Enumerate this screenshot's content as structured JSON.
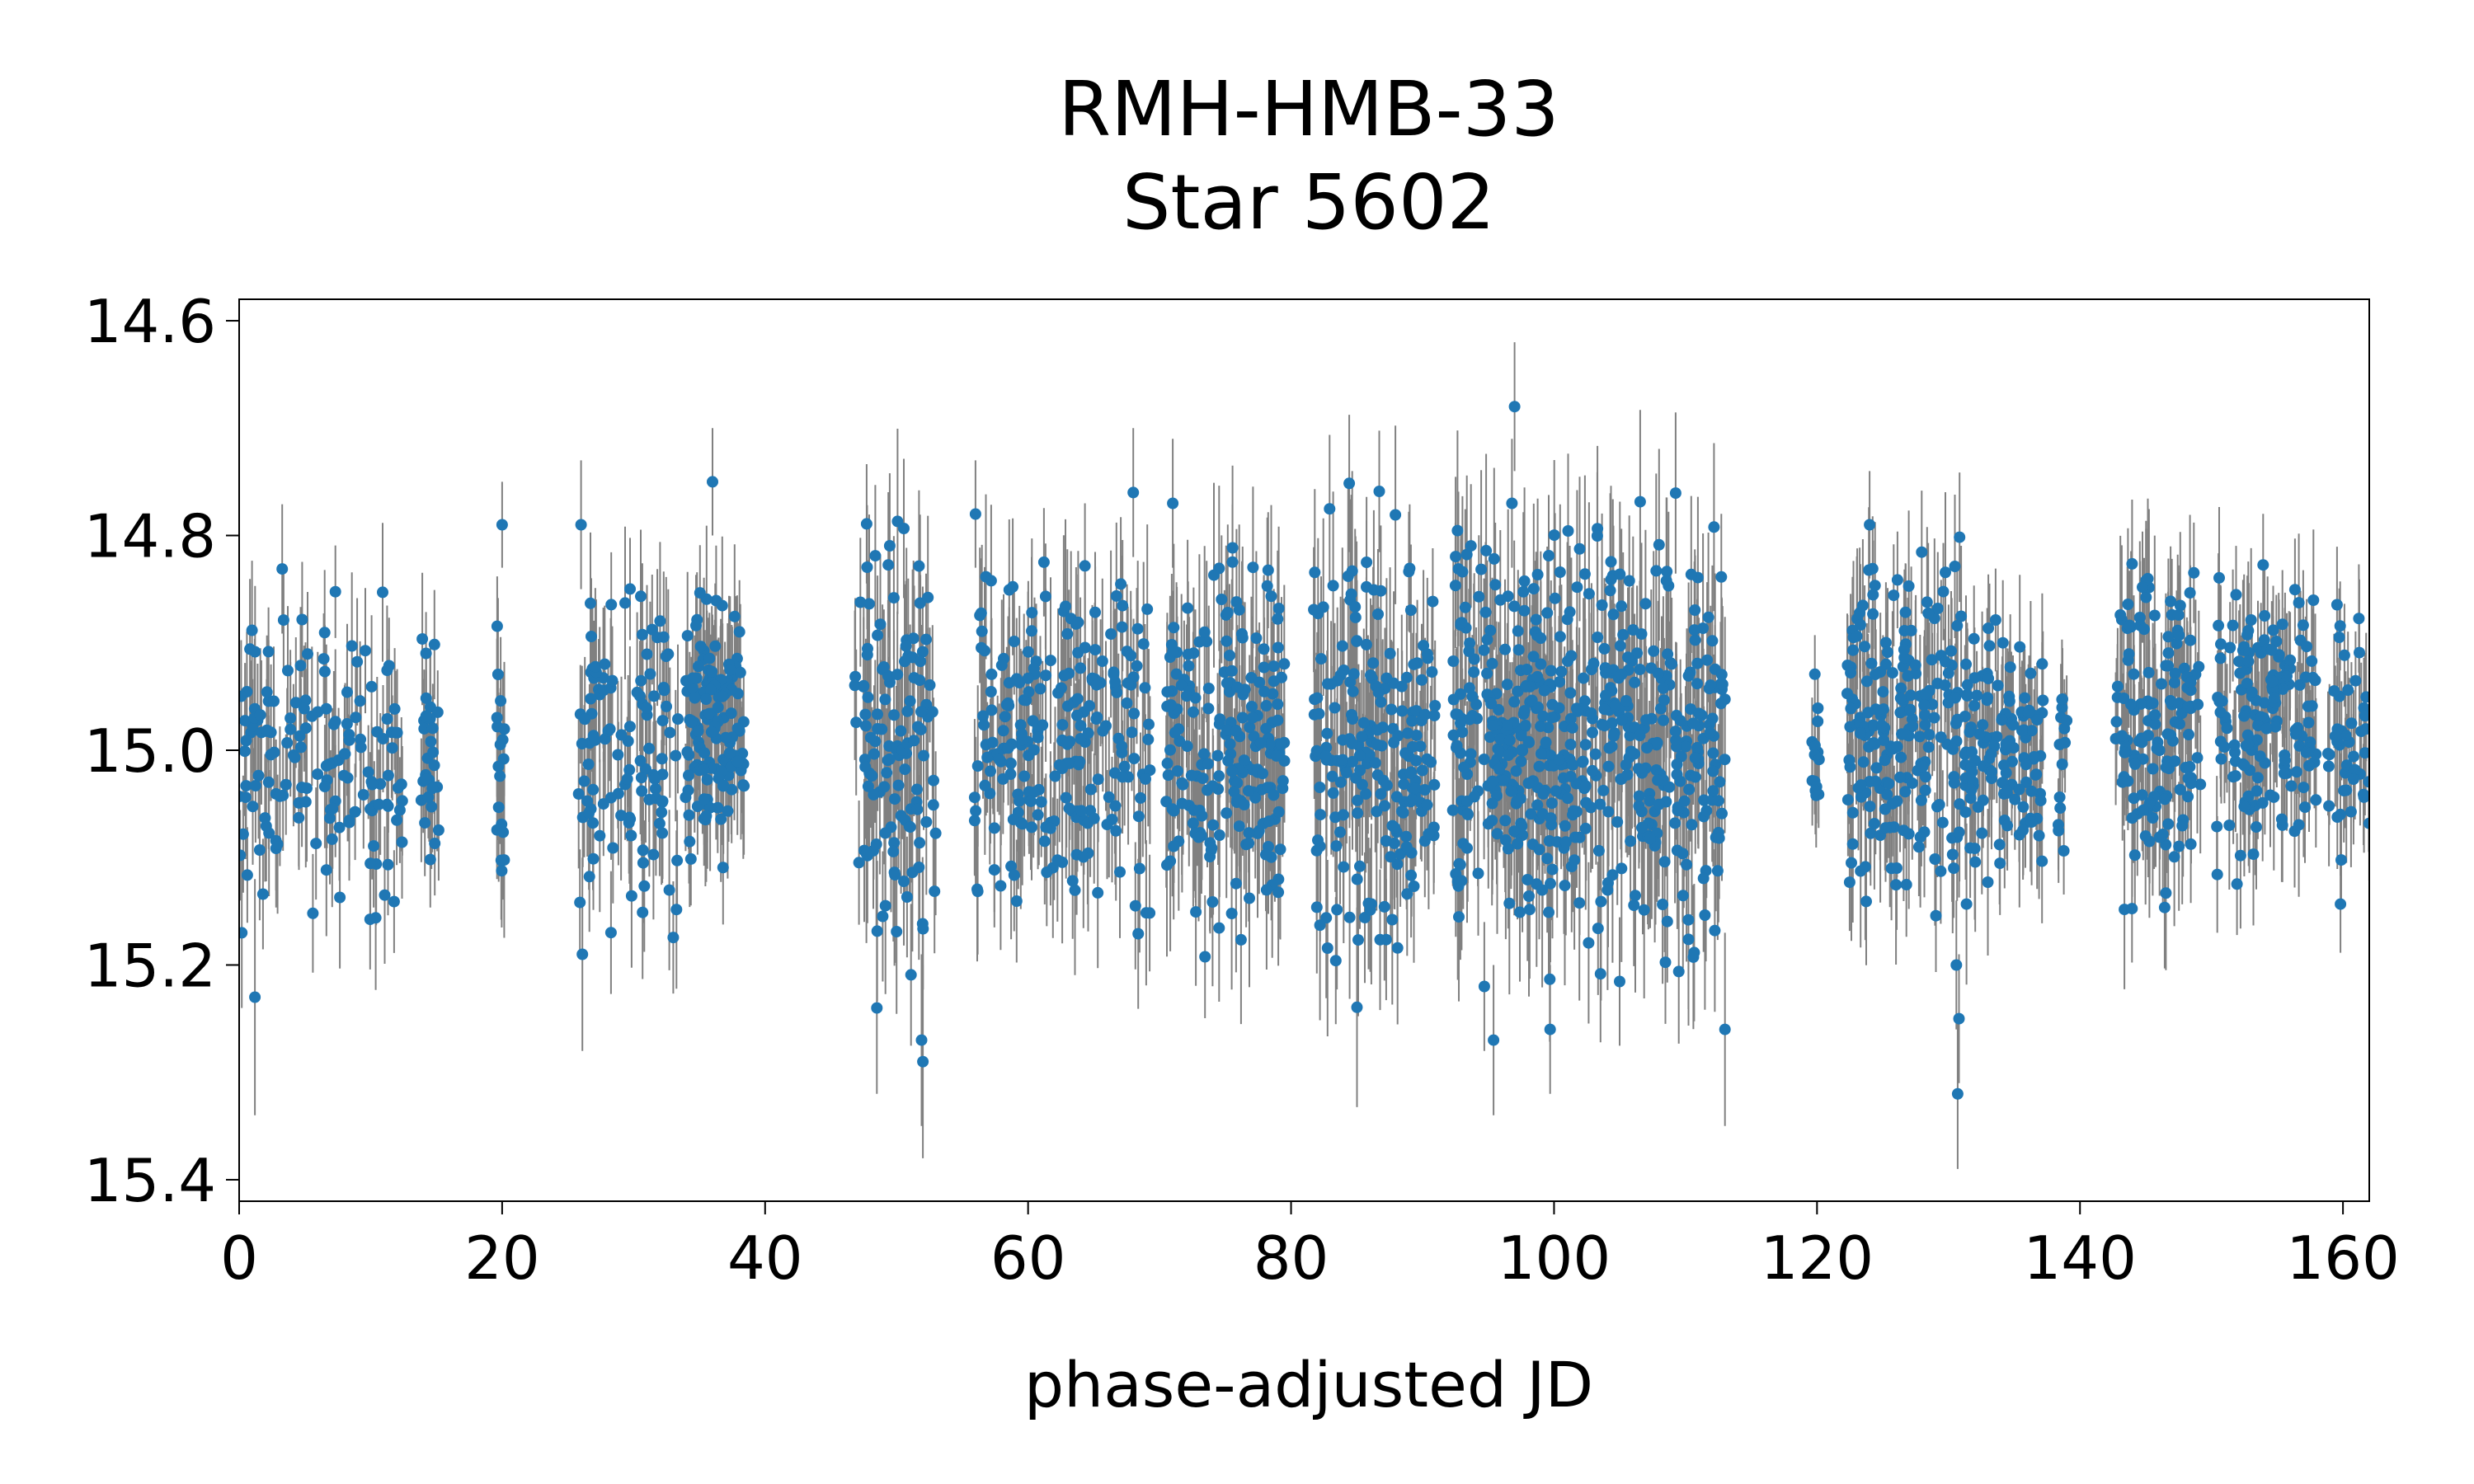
{
  "chart_data": {
    "type": "scatter",
    "title": [
      "RMH-HMB-33",
      "Star 5602"
    ],
    "xlabel": "phase-adjusted JD",
    "ylabel": "",
    "xlim": [
      0,
      162
    ],
    "ylim": [
      15.42,
      14.58
    ],
    "y_inverted": true,
    "x_ticks": [
      0,
      20,
      40,
      60,
      80,
      100,
      120,
      140,
      160
    ],
    "x_tick_labels": [
      "0",
      "20",
      "40",
      "60",
      "80",
      "100",
      "120",
      "140",
      "160"
    ],
    "y_ticks": [
      14.6,
      14.8,
      15.0,
      15.2,
      15.4
    ],
    "y_tick_labels": [
      "14.6",
      "14.8",
      "15.0",
      "15.2",
      "15.4"
    ],
    "grid": false,
    "marker_color": "#1f77b4",
    "errorbar_color": "#808080",
    "series": [
      {
        "name": "Star 5602",
        "observing_segments": [
          {
            "x_start": 0,
            "x_end": 12.5,
            "median": 15.0,
            "spread": 0.07,
            "err": 0.055,
            "n": 150
          },
          {
            "x_start": 13.8,
            "x_end": 15.2,
            "median": 14.99,
            "spread": 0.05,
            "err": 0.05,
            "n": 28
          },
          {
            "x_start": 19.6,
            "x_end": 20.3,
            "median": 15.0,
            "spread": 0.08,
            "err": 0.06,
            "n": 18
          },
          {
            "x_start": 25.8,
            "x_end": 33.5,
            "median": 15.0,
            "spread": 0.08,
            "err": 0.06,
            "n": 110
          },
          {
            "x_start": 33.8,
            "x_end": 38.4,
            "median": 14.97,
            "spread": 0.06,
            "err": 0.055,
            "n": 130
          },
          {
            "x_start": 46.8,
            "x_end": 53.0,
            "median": 15.0,
            "spread": 0.09,
            "err": 0.07,
            "n": 120
          },
          {
            "x_start": 55.8,
            "x_end": 69.3,
            "median": 14.98,
            "spread": 0.08,
            "err": 0.065,
            "n": 220
          },
          {
            "x_start": 70.5,
            "x_end": 79.5,
            "median": 15.0,
            "spread": 0.08,
            "err": 0.07,
            "n": 200
          },
          {
            "x_start": 81.7,
            "x_end": 88.2,
            "median": 14.99,
            "spread": 0.1,
            "err": 0.075,
            "n": 140
          },
          {
            "x_start": 88.3,
            "x_end": 91.0,
            "median": 14.99,
            "spread": 0.07,
            "err": 0.06,
            "n": 60
          },
          {
            "x_start": 92.3,
            "x_end": 113.0,
            "median": 14.99,
            "spread": 0.09,
            "err": 0.075,
            "n": 520
          },
          {
            "x_start": 119.6,
            "x_end": 120.2,
            "median": 15.0,
            "spread": 0.04,
            "err": 0.04,
            "n": 15
          },
          {
            "x_start": 122.3,
            "x_end": 131.5,
            "median": 14.98,
            "spread": 0.07,
            "err": 0.06,
            "n": 210
          },
          {
            "x_start": 131.6,
            "x_end": 137.3,
            "median": 15.0,
            "spread": 0.06,
            "err": 0.055,
            "n": 110
          },
          {
            "x_start": 138.3,
            "x_end": 139.0,
            "median": 15.0,
            "spread": 0.05,
            "err": 0.05,
            "n": 14
          },
          {
            "x_start": 142.7,
            "x_end": 149.3,
            "median": 14.98,
            "spread": 0.07,
            "err": 0.06,
            "n": 140
          },
          {
            "x_start": 150.4,
            "x_end": 158.0,
            "median": 14.97,
            "spread": 0.06,
            "err": 0.055,
            "n": 150
          },
          {
            "x_start": 158.8,
            "x_end": 162.0,
            "median": 15.0,
            "spread": 0.06,
            "err": 0.055,
            "n": 45
          }
        ],
        "notable_points": [
          {
            "x": 97.0,
            "y": 14.68,
            "err": 0.06
          },
          {
            "x": 71.0,
            "y": 14.77,
            "err": 0.06
          },
          {
            "x": 36.0,
            "y": 14.75,
            "err": 0.05
          },
          {
            "x": 96.8,
            "y": 14.77,
            "err": 0.06
          },
          {
            "x": 68.0,
            "y": 14.76,
            "err": 0.06
          },
          {
            "x": 26.0,
            "y": 14.79,
            "err": 0.06
          },
          {
            "x": 20.0,
            "y": 14.79,
            "err": 0.04
          },
          {
            "x": 56.0,
            "y": 14.78,
            "err": 0.05
          },
          {
            "x": 124.0,
            "y": 14.79,
            "err": 0.05
          },
          {
            "x": 130.7,
            "y": 15.32,
            "err": 0.07
          },
          {
            "x": 130.8,
            "y": 15.25,
            "err": 0.06
          },
          {
            "x": 130.6,
            "y": 15.2,
            "err": 0.06
          },
          {
            "x": 52.0,
            "y": 15.29,
            "err": 0.09
          },
          {
            "x": 51.9,
            "y": 15.27,
            "err": 0.08
          },
          {
            "x": 1.2,
            "y": 15.23,
            "err": 0.11
          },
          {
            "x": 95.4,
            "y": 15.27,
            "err": 0.07
          },
          {
            "x": 99.7,
            "y": 15.26,
            "err": 0.06
          },
          {
            "x": 113.0,
            "y": 15.26,
            "err": 0.09
          },
          {
            "x": 48.5,
            "y": 15.24,
            "err": 0.08
          },
          {
            "x": 94.7,
            "y": 15.22,
            "err": 0.06
          },
          {
            "x": 0.2,
            "y": 15.17,
            "err": 0.07
          },
          {
            "x": 26.1,
            "y": 15.19,
            "err": 0.09
          }
        ]
      }
    ]
  }
}
